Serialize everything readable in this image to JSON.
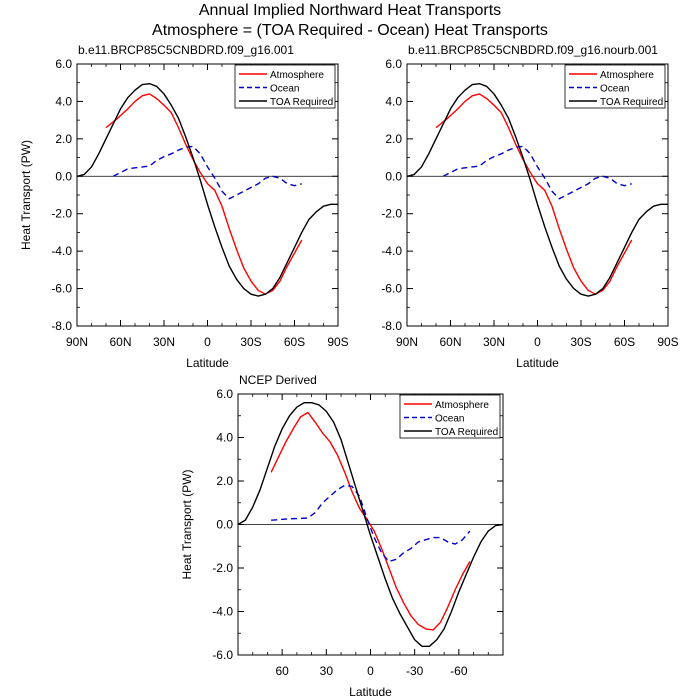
{
  "page": {
    "title": "Annual Implied Northward Heat Transports",
    "subtitle": "Atmosphere = (TOA Required - Ocean) Heat Transports"
  },
  "legend_labels": {
    "atmosphere": "Atmosphere",
    "ocean": "Ocean",
    "toa": "TOA Required"
  },
  "colors": {
    "atmosphere": "#ff0000",
    "ocean": "#0000cc",
    "toa": "#000000"
  },
  "chart_data": [
    {
      "type": "line",
      "title": "b.e11.BRCP85C5CNBDRD.f09_g16.001",
      "xlabel": "Latitude",
      "ylabel": "Heat Transport (PW)",
      "xlim": [
        90,
        -90
      ],
      "ylim": [
        -8,
        6
      ],
      "x_ticks": [
        90,
        60,
        30,
        0,
        -30,
        -60,
        -90
      ],
      "x_tick_labels": [
        "90N",
        "60N",
        "30N",
        "0",
        "30S",
        "60S",
        "90S"
      ],
      "y_ticks": [
        -8,
        -6,
        -4,
        -2,
        0,
        2,
        4,
        6
      ],
      "y_tick_labels": [
        "-8.0",
        "-6.0",
        "-4.0",
        "-2.0",
        "0.0",
        "2.0",
        "4.0",
        "6.0"
      ],
      "zero_line": true,
      "legend_position": "top-right",
      "series": [
        {
          "name": "Atmosphere",
          "style": "solid",
          "x": [
            70,
            62,
            55,
            50,
            45,
            40,
            35,
            30,
            25,
            20,
            15,
            10,
            5,
            0,
            -5,
            -10,
            -15,
            -20,
            -25,
            -30,
            -35,
            -40,
            -45,
            -50,
            -55,
            -60,
            -65
          ],
          "y": [
            2.6,
            3.1,
            3.6,
            4.0,
            4.3,
            4.4,
            4.15,
            3.8,
            3.4,
            2.6,
            1.7,
            0.9,
            0.2,
            -0.4,
            -0.75,
            -1.6,
            -2.8,
            -3.9,
            -4.9,
            -5.6,
            -6.1,
            -6.3,
            -6.1,
            -5.6,
            -4.8,
            -4.1,
            -3.4
          ]
        },
        {
          "name": "Ocean",
          "style": "dashed",
          "x": [
            65,
            60,
            55,
            50,
            45,
            40,
            35,
            30,
            25,
            20,
            15,
            10,
            5,
            0,
            -5,
            -10,
            -15,
            -20,
            -25,
            -30,
            -35,
            -40,
            -45,
            -50,
            -55,
            -60,
            -65
          ],
          "y": [
            0.0,
            0.2,
            0.4,
            0.45,
            0.5,
            0.55,
            0.85,
            1.05,
            1.2,
            1.4,
            1.55,
            1.6,
            1.2,
            0.5,
            -0.1,
            -0.8,
            -1.2,
            -1.0,
            -0.8,
            -0.6,
            -0.4,
            -0.1,
            0.0,
            -0.1,
            -0.4,
            -0.5,
            -0.4
          ]
        },
        {
          "name": "TOA Required",
          "style": "solid",
          "x": [
            90,
            85,
            80,
            75,
            70,
            65,
            60,
            55,
            50,
            45,
            40,
            35,
            30,
            25,
            20,
            15,
            10,
            5,
            0,
            -5,
            -10,
            -15,
            -20,
            -25,
            -30,
            -35,
            -40,
            -45,
            -50,
            -55,
            -60,
            -65,
            -70,
            -75,
            -80,
            -85,
            -90
          ],
          "y": [
            0,
            0.1,
            0.5,
            1.2,
            2.0,
            2.8,
            3.6,
            4.2,
            4.6,
            4.9,
            4.95,
            4.8,
            4.4,
            3.8,
            3.1,
            2.1,
            1.0,
            -0.2,
            -1.5,
            -2.7,
            -3.8,
            -4.8,
            -5.5,
            -6.0,
            -6.3,
            -6.4,
            -6.3,
            -6.0,
            -5.4,
            -4.6,
            -3.8,
            -3.0,
            -2.3,
            -1.9,
            -1.6,
            -1.5,
            -1.5
          ]
        }
      ]
    },
    {
      "type": "line",
      "title": "b.e11.BRCP85C5CNBDRD.f09_g16.nourb.001",
      "xlabel": "Latitude",
      "ylabel": "",
      "xlim": [
        90,
        -90
      ],
      "ylim": [
        -8,
        6
      ],
      "x_ticks": [
        90,
        60,
        30,
        0,
        -30,
        -60,
        -90
      ],
      "x_tick_labels": [
        "90N",
        "60N",
        "30N",
        "0",
        "30S",
        "60S",
        "90S"
      ],
      "y_ticks": [
        -8,
        -6,
        -4,
        -2,
        0,
        2,
        4,
        6
      ],
      "y_tick_labels": [
        "-8.0",
        "-6.0",
        "-4.0",
        "-2.0",
        "0.0",
        "2.0",
        "4.0",
        "6.0"
      ],
      "zero_line": true,
      "legend_position": "top-right",
      "series": [
        {
          "name": "Atmosphere",
          "style": "solid",
          "x": [
            70,
            62,
            55,
            50,
            45,
            40,
            35,
            30,
            25,
            20,
            15,
            10,
            5,
            0,
            -5,
            -10,
            -15,
            -20,
            -25,
            -30,
            -35,
            -40,
            -45,
            -50,
            -55,
            -60,
            -65
          ],
          "y": [
            2.6,
            3.1,
            3.6,
            4.0,
            4.3,
            4.4,
            4.15,
            3.8,
            3.4,
            2.6,
            1.7,
            0.9,
            0.2,
            -0.4,
            -0.75,
            -1.6,
            -2.8,
            -3.9,
            -4.9,
            -5.6,
            -6.1,
            -6.3,
            -6.1,
            -5.6,
            -4.8,
            -4.1,
            -3.4
          ]
        },
        {
          "name": "Ocean",
          "style": "dashed",
          "x": [
            65,
            60,
            55,
            50,
            45,
            40,
            35,
            30,
            25,
            20,
            15,
            10,
            5,
            0,
            -5,
            -10,
            -15,
            -20,
            -25,
            -30,
            -35,
            -40,
            -45,
            -50,
            -55,
            -60,
            -65
          ],
          "y": [
            0.0,
            0.2,
            0.4,
            0.45,
            0.5,
            0.55,
            0.85,
            1.05,
            1.2,
            1.4,
            1.55,
            1.6,
            1.2,
            0.5,
            -0.1,
            -0.8,
            -1.2,
            -1.0,
            -0.8,
            -0.6,
            -0.4,
            -0.1,
            0.0,
            -0.1,
            -0.4,
            -0.5,
            -0.4
          ]
        },
        {
          "name": "TOA Required",
          "style": "solid",
          "x": [
            90,
            85,
            80,
            75,
            70,
            65,
            60,
            55,
            50,
            45,
            40,
            35,
            30,
            25,
            20,
            15,
            10,
            5,
            0,
            -5,
            -10,
            -15,
            -20,
            -25,
            -30,
            -35,
            -40,
            -45,
            -50,
            -55,
            -60,
            -65,
            -70,
            -75,
            -80,
            -85,
            -90
          ],
          "y": [
            0,
            0.1,
            0.5,
            1.2,
            2.0,
            2.8,
            3.6,
            4.2,
            4.6,
            4.9,
            4.95,
            4.8,
            4.4,
            3.8,
            3.1,
            2.1,
            1.0,
            -0.2,
            -1.5,
            -2.7,
            -3.8,
            -4.8,
            -5.5,
            -6.0,
            -6.3,
            -6.4,
            -6.3,
            -6.0,
            -5.4,
            -4.6,
            -3.8,
            -3.0,
            -2.3,
            -1.9,
            -1.6,
            -1.5,
            -1.5
          ]
        }
      ]
    },
    {
      "type": "line",
      "title": "NCEP Derived",
      "xlabel": "Latitude",
      "ylabel": "Heat Transport (PW)",
      "xlim": [
        90,
        -90
      ],
      "ylim": [
        -6,
        6
      ],
      "x_ticks": [
        60,
        30,
        0,
        -30,
        -60
      ],
      "x_tick_labels": [
        "60",
        "30",
        "0",
        "-30",
        "-60"
      ],
      "y_ticks": [
        -6,
        -4,
        -2,
        0,
        2,
        4,
        6
      ],
      "y_tick_labels": [
        "-6.0",
        "-4.0",
        "-2.0",
        "0.0",
        "2.0",
        "4.0",
        "6.0"
      ],
      "zero_line": true,
      "legend_position": "top-right",
      "series": [
        {
          "name": "Atmosphere",
          "style": "solid",
          "x": [
            67.5,
            62.5,
            57.5,
            52.5,
            47.5,
            42.5,
            37.5,
            32.5,
            27.5,
            22.5,
            17.5,
            12.5,
            7.5,
            2.5,
            -2.5,
            -7.5,
            -12.5,
            -17.5,
            -22.5,
            -27.5,
            -32.5,
            -37.5,
            -42.5,
            -47.5,
            -52.5,
            -57.5,
            -62.5,
            -67.5
          ],
          "y": [
            2.4,
            3.1,
            3.8,
            4.4,
            4.95,
            5.15,
            4.7,
            4.2,
            3.8,
            3.2,
            2.4,
            1.5,
            0.75,
            0.25,
            -0.3,
            -1.1,
            -2.0,
            -2.9,
            -3.6,
            -4.2,
            -4.6,
            -4.8,
            -4.85,
            -4.5,
            -3.8,
            -3.0,
            -2.3,
            -1.7
          ]
        },
        {
          "name": "Ocean",
          "style": "dashed",
          "x": [
            67.5,
            62.5,
            57.5,
            52.5,
            47.5,
            42.5,
            37.5,
            32.5,
            27.5,
            22.5,
            17.5,
            12.5,
            7.5,
            2.5,
            -2.5,
            -7.5,
            -12.5,
            -17.5,
            -22.5,
            -27.5,
            -32.5,
            -37.5,
            -42.5,
            -47.5,
            -52.5,
            -57.5,
            -62.5,
            -67.5
          ],
          "y": [
            0.2,
            0.22,
            0.25,
            0.27,
            0.28,
            0.3,
            0.55,
            1.0,
            1.3,
            1.6,
            1.8,
            1.75,
            1.3,
            0.3,
            -0.6,
            -1.3,
            -1.7,
            -1.6,
            -1.3,
            -1.1,
            -0.8,
            -0.7,
            -0.6,
            -0.6,
            -0.8,
            -0.9,
            -0.7,
            -0.3
          ]
        },
        {
          "name": "TOA Required",
          "style": "solid",
          "x": [
            90,
            85,
            80,
            75,
            70,
            65,
            60,
            55,
            50,
            45,
            40,
            35,
            30,
            25,
            20,
            15,
            10,
            5,
            0,
            -5,
            -10,
            -15,
            -20,
            -25,
            -30,
            -35,
            -40,
            -45,
            -50,
            -55,
            -60,
            -65,
            -70,
            -75,
            -80,
            -85,
            -90
          ],
          "y": [
            0,
            0.2,
            0.8,
            1.6,
            2.6,
            3.6,
            4.4,
            5.0,
            5.4,
            5.6,
            5.6,
            5.5,
            5.2,
            4.7,
            3.9,
            2.8,
            1.7,
            0.6,
            -0.5,
            -1.5,
            -2.5,
            -3.4,
            -4.1,
            -4.7,
            -5.3,
            -5.6,
            -5.6,
            -5.3,
            -4.8,
            -4.0,
            -3.1,
            -2.3,
            -1.5,
            -0.8,
            -0.3,
            -0.05,
            0
          ]
        }
      ]
    }
  ]
}
